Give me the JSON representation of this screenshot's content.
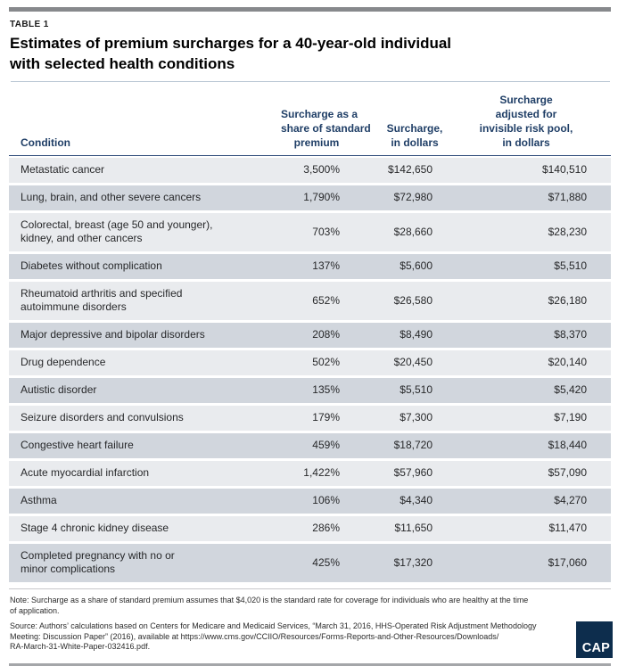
{
  "page": {
    "table_label": "TABLE 1",
    "title": "Estimates of premium surcharges for a 40-year-old individual\nwith selected health conditions"
  },
  "table": {
    "headers": {
      "condition": "Condition",
      "share": "Surcharge as a\nshare of standard\npremium",
      "dollars": "Surcharge,\nin dollars",
      "adjusted": "Surcharge\nadjusted for\ninvisible risk pool,\nin dollars"
    },
    "rows": [
      {
        "condition": "Metastatic cancer",
        "share": "3,500%",
        "dollars": "$142,650",
        "adjusted": "$140,510"
      },
      {
        "condition": "Lung, brain, and other severe cancers",
        "share": "1,790%",
        "dollars": "$72,980",
        "adjusted": "$71,880"
      },
      {
        "condition": "Colorectal, breast (age 50 and younger),\nkidney, and other cancers",
        "share": "703%",
        "dollars": "$28,660",
        "adjusted": "$28,230"
      },
      {
        "condition": "Diabetes without complication",
        "share": "137%",
        "dollars": "$5,600",
        "adjusted": "$5,510"
      },
      {
        "condition": "Rheumatoid arthritis and specified\nautoimmune disorders",
        "share": "652%",
        "dollars": "$26,580",
        "adjusted": "$26,180"
      },
      {
        "condition": "Major depressive and bipolar disorders",
        "share": "208%",
        "dollars": "$8,490",
        "adjusted": "$8,370"
      },
      {
        "condition": "Drug dependence",
        "share": "502%",
        "dollars": "$20,450",
        "adjusted": "$20,140"
      },
      {
        "condition": "Autistic disorder",
        "share": "135%",
        "dollars": "$5,510",
        "adjusted": "$5,420"
      },
      {
        "condition": "Seizure disorders and convulsions",
        "share": "179%",
        "dollars": "$7,300",
        "adjusted": "$7,190"
      },
      {
        "condition": "Congestive heart failure",
        "share": "459%",
        "dollars": "$18,720",
        "adjusted": "$18,440"
      },
      {
        "condition": "Acute myocardial infarction",
        "share": "1,422%",
        "dollars": "$57,960",
        "adjusted": "$57,090"
      },
      {
        "condition": "Asthma",
        "share": "106%",
        "dollars": "$4,340",
        "adjusted": "$4,270"
      },
      {
        "condition": "Stage 4 chronic kidney disease",
        "share": "286%",
        "dollars": "$11,650",
        "adjusted": "$11,470"
      },
      {
        "condition": "Completed pregnancy with no or\nminor complications",
        "share": "425%",
        "dollars": "$17,320",
        "adjusted": "$17,060"
      }
    ]
  },
  "footer": {
    "note": "Note: Surcharge as a share of standard premium assumes that $4,020 is the standard rate for coverage for individuals who are healthy at the time\nof application.",
    "source": "Source: Authors’ calculations based on Centers for Medicare and Medicaid Services, “March 31, 2016, HHS-Operated Risk Adjustment Methodology\nMeeting: Discussion Paper” (2016), available at https://www.cms.gov/CCIIO/Resources/Forms-Reports-and-Other-Resources/Downloads/\nRA-March-31-White-Paper-032416.pdf.",
    "logo": "CAP"
  },
  "colors": {
    "row_light": "#e9ebee",
    "row_dark": "#d1d6dd",
    "header_navy": "#1f3e66",
    "logo_navy": "#0d2d4d",
    "top_bar_gray": "#87898c",
    "bottom_bar_gray": "#a4a6a9"
  }
}
